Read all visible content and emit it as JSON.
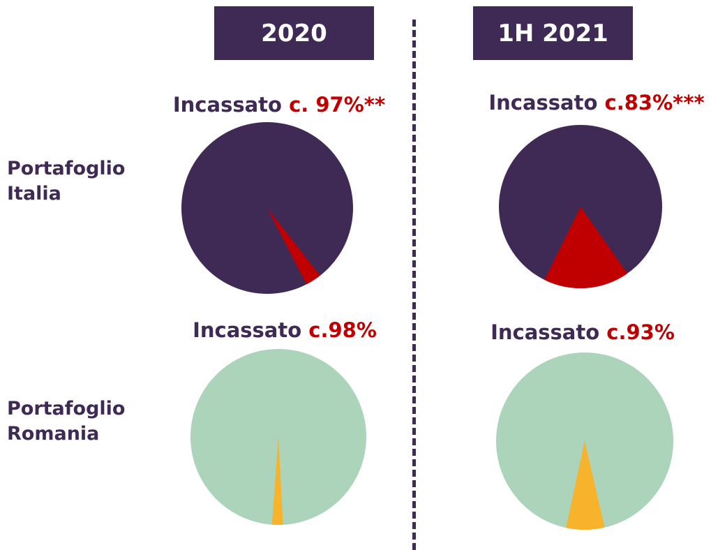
{
  "periods": {
    "left": "2020",
    "right": "1H 2021"
  },
  "rows": {
    "italia": {
      "line1": "Portafoglio",
      "line2": "Italia"
    },
    "romania": {
      "line1": "Portafoglio",
      "line2": "Romania"
    }
  },
  "titles": {
    "it_2020": {
      "word": "Incassato",
      "pct": "c. 97%**"
    },
    "it_2021": {
      "word": "Incassato",
      "pct": "c.83%***"
    },
    "ro_2020": {
      "word": "Incassato",
      "pct": "c.98%"
    },
    "ro_2021": {
      "word": "Incassato",
      "pct": "c.93%"
    }
  },
  "chart_data": [
    {
      "type": "pie",
      "title": "Incassato c. 97%**",
      "portfolio": "Portafoglio Italia",
      "period": "2020",
      "values": [
        97,
        3
      ],
      "colors": [
        "#3f2a55",
        "#c00000"
      ]
    },
    {
      "type": "pie",
      "title": "Incassato c.83%***",
      "portfolio": "Portafoglio Italia",
      "period": "1H 2021",
      "values": [
        83,
        17
      ],
      "colors": [
        "#3f2a55",
        "#c00000"
      ]
    },
    {
      "type": "pie",
      "title": "Incassato c.98%",
      "portfolio": "Portafoglio Romania",
      "period": "2020",
      "values": [
        98,
        2
      ],
      "colors": [
        "#abd4ba",
        "#f7b32b"
      ]
    },
    {
      "type": "pie",
      "title": "Incassato c.93%",
      "portfolio": "Portafoglio Romania",
      "period": "1H 2021",
      "values": [
        93,
        7
      ],
      "colors": [
        "#abd4ba",
        "#f7b32b"
      ]
    }
  ]
}
